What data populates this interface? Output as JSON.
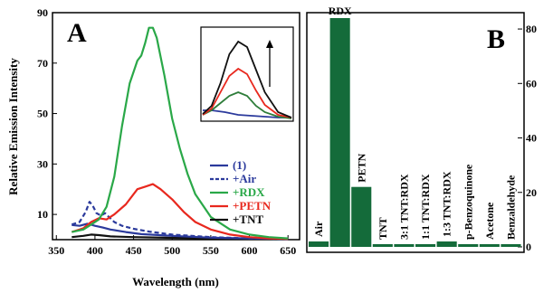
{
  "figure": {
    "panelA_label": "A",
    "panelB_label": "B"
  },
  "chart_data": [
    {
      "type": "line",
      "xlabel": "Wavelength (nm)",
      "ylabel": "Relative Emission Intensity",
      "xlim": [
        345,
        665
      ],
      "ylim": [
        0,
        90
      ],
      "x_ticks": [
        "350",
        "400",
        "450",
        "500",
        "550",
        "600",
        "650"
      ],
      "y_ticks": [
        "10",
        "30",
        "50",
        "70",
        "90"
      ],
      "legend_position": "right-middle",
      "series": [
        {
          "name": "(1)",
          "color": "#2b3a9c",
          "dash": "solid",
          "x": [
            370,
            380,
            390,
            395,
            400,
            410,
            420,
            440,
            460,
            500,
            550,
            600,
            650
          ],
          "y": [
            5.8,
            5.5,
            6.3,
            5.9,
            5.5,
            4.8,
            4.0,
            3.0,
            2.2,
            1.5,
            0.8,
            0.5,
            0.3
          ]
        },
        {
          "name": "+Air",
          "color": "#2b3a9c",
          "dash": "dashed",
          "x": [
            370,
            380,
            388,
            393,
            397,
            402,
            408,
            413,
            418,
            425,
            435,
            450,
            470,
            500,
            550,
            600,
            650
          ],
          "y": [
            6.0,
            7.0,
            11.0,
            15.0,
            13.5,
            10.5,
            9.5,
            10.5,
            9.0,
            7.0,
            5.5,
            4.3,
            3.2,
            2.0,
            1.0,
            0.5,
            0.3
          ]
        },
        {
          "name": "+RDX",
          "color": "#2aa848",
          "dash": "solid",
          "x": [
            370,
            385,
            395,
            405,
            415,
            425,
            435,
            445,
            455,
            460,
            465,
            470,
            475,
            480,
            490,
            500,
            510,
            520,
            530,
            550,
            575,
            600,
            625,
            650
          ],
          "y": [
            3.0,
            4.0,
            6.0,
            8.0,
            13.0,
            25.0,
            45.0,
            62.0,
            71.0,
            73.0,
            78.0,
            84.0,
            84.0,
            80.0,
            65.0,
            48.0,
            36.0,
            26.0,
            18.0,
            9.0,
            4.0,
            2.0,
            1.0,
            0.5
          ]
        },
        {
          "name": "+PETN",
          "color": "#e8281e",
          "dash": "solid",
          "x": [
            370,
            385,
            395,
            405,
            415,
            425,
            440,
            455,
            465,
            475,
            485,
            500,
            515,
            530,
            550,
            575,
            600,
            625,
            650
          ],
          "y": [
            3.0,
            4.5,
            7.0,
            8.5,
            8.0,
            10.0,
            14.0,
            20.0,
            21.0,
            22.0,
            20.0,
            16.0,
            11.0,
            7.0,
            4.0,
            2.0,
            1.0,
            0.5,
            0.3
          ]
        },
        {
          "name": "+TNT",
          "color": "#111111",
          "dash": "solid",
          "x": [
            370,
            385,
            395,
            405,
            420,
            450,
            500,
            550,
            600,
            650
          ],
          "y": [
            1.0,
            1.5,
            2.0,
            1.8,
            1.3,
            1.0,
            0.7,
            0.5,
            0.3,
            0.2
          ]
        }
      ],
      "inset": {
        "arrow": "up",
        "series": [
          {
            "color": "#2b3a9c",
            "x": [
              0,
              0.1,
              0.25,
              0.4,
              0.55,
              0.7,
              0.85,
              1.0
            ],
            "y": [
              0.1,
              0.1,
              0.08,
              0.05,
              0.04,
              0.03,
              0.02,
              0.02
            ]
          },
          {
            "color": "#2e7d3a",
            "x": [
              0,
              0.1,
              0.2,
              0.3,
              0.4,
              0.5,
              0.6,
              0.7,
              0.85,
              1.0
            ],
            "y": [
              0.05,
              0.1,
              0.18,
              0.26,
              0.3,
              0.26,
              0.15,
              0.08,
              0.03,
              0.01
            ]
          },
          {
            "color": "#e8281e",
            "x": [
              0,
              0.1,
              0.2,
              0.3,
              0.4,
              0.5,
              0.6,
              0.7,
              0.85,
              1.0
            ],
            "y": [
              0.05,
              0.12,
              0.3,
              0.48,
              0.56,
              0.5,
              0.32,
              0.16,
              0.05,
              0.02
            ]
          },
          {
            "color": "#111111",
            "x": [
              0,
              0.1,
              0.2,
              0.3,
              0.4,
              0.5,
              0.6,
              0.7,
              0.85,
              1.0
            ],
            "y": [
              0.06,
              0.15,
              0.4,
              0.72,
              0.86,
              0.8,
              0.55,
              0.3,
              0.08,
              0.02
            ]
          }
        ]
      }
    },
    {
      "type": "bar",
      "ylim": [
        -2,
        86
      ],
      "y_ticks": [
        "0",
        "20",
        "40",
        "60",
        "80"
      ],
      "bar_color": "#146b3a",
      "categories": [
        "Air",
        "RDX",
        "PETN",
        "TNT",
        "3:1 TNT:RDX",
        "1:1 TNT:RDX",
        "1:3 TNT:RDX",
        "p-Benzoquinone",
        "Acetone",
        "Benzaldehyde"
      ],
      "values": [
        2,
        84,
        22,
        1,
        1,
        1,
        2,
        1,
        1,
        1
      ]
    }
  ]
}
